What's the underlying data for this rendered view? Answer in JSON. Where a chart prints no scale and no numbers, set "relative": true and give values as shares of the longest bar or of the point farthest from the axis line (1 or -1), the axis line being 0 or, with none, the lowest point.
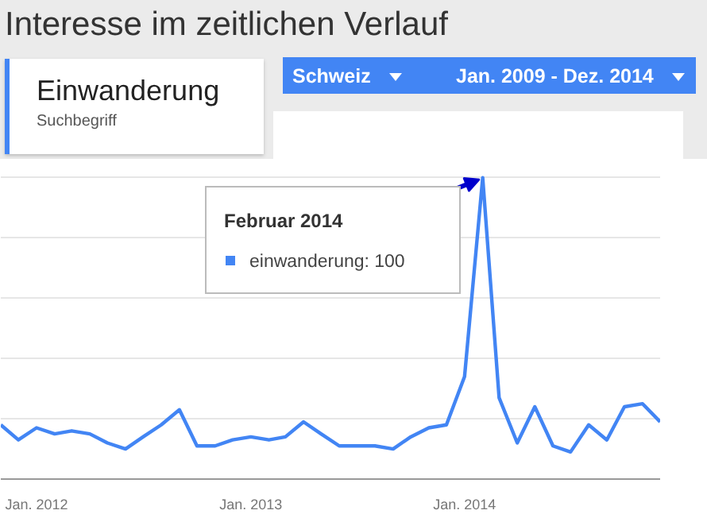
{
  "chart_data": {
    "type": "line",
    "title": "Interesse im zeitlichen Verlauf",
    "x": [
      "2011-11",
      "2011-12",
      "2012-01",
      "2012-02",
      "2012-03",
      "2012-04",
      "2012-05",
      "2012-06",
      "2012-07",
      "2012-08",
      "2012-09",
      "2012-10",
      "2012-11",
      "2012-12",
      "2013-01",
      "2013-02",
      "2013-03",
      "2013-04",
      "2013-05",
      "2013-06",
      "2013-07",
      "2013-08",
      "2013-09",
      "2013-10",
      "2013-11",
      "2013-12",
      "2014-01",
      "2014-02",
      "2014-03",
      "2014-04",
      "2014-05",
      "2014-06",
      "2014-07",
      "2014-08",
      "2014-09",
      "2014-10",
      "2014-11",
      "2014-12"
    ],
    "relative": true,
    "series": [
      {
        "color": "#4285f4",
        "values": [
          0.18,
          0.13,
          0.17,
          0.15,
          0.16,
          0.15,
          0.12,
          0.1,
          0.14,
          0.18,
          0.23,
          0.11,
          0.11,
          0.13,
          0.14,
          0.13,
          0.14,
          0.19,
          0.15,
          0.11,
          0.11,
          0.11,
          0.1,
          0.14,
          0.17,
          0.18,
          0.34,
          1,
          0.27,
          0.12,
          0.24,
          0.11,
          0.09,
          0.18,
          0.13,
          0.24,
          0.25,
          0.19
        ]
      }
    ],
    "xlim": [
      "2011-11",
      "2014-12"
    ],
    "xticks": [
      {
        "value": "2012-01",
        "label": "Jan. 2012"
      },
      {
        "value": "2013-01",
        "label": "Jan. 2013"
      },
      {
        "value": "2014-01",
        "label": "Jan. 2014"
      }
    ],
    "tick_labels": "x",
    "grid": "y",
    "marker": "none",
    "line_style": "solid",
    "annotations": [
      "Einwanderung",
      "Suchbegriff",
      "Schweiz",
      "Jan. 2009 - Dez. 2014",
      "Februar 2014",
      "einwanderung: 100"
    ]
  }
}
